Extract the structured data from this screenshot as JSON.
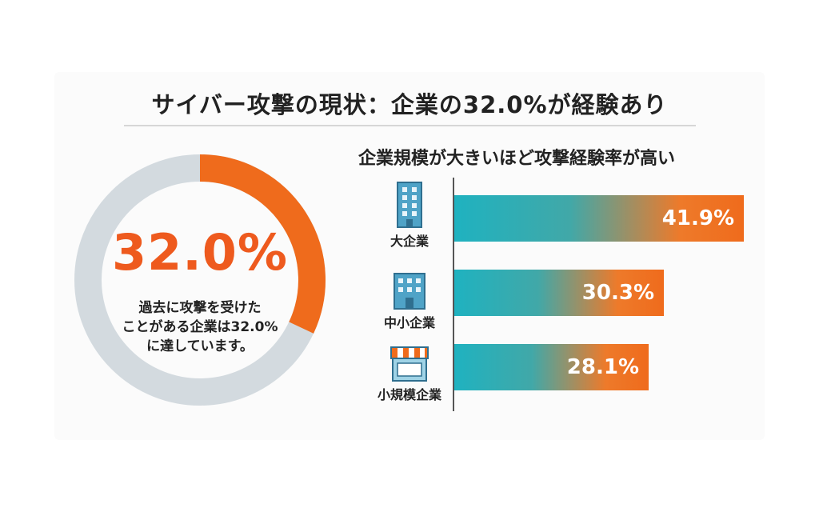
{
  "title": "サイバー攻撃の現状：企業の32.0%が経験あり",
  "donut": {
    "value_label": "32.0%",
    "description_lines": [
      "過去に攻撃を受けた",
      "ことがある企業は32.0%",
      "に達しています。"
    ],
    "colors": {
      "filled": "#ef6b1c",
      "remainder": "#d3dadf"
    }
  },
  "subtitle": "企業規模が大きいほど攻撃経験率が高い",
  "chart_data": [
    {
      "type": "pie",
      "values": [
        32.0,
        68.0
      ],
      "labels": [
        "32.0%",
        ""
      ],
      "title": "",
      "donut": true
    },
    {
      "type": "bar",
      "orientation": "horizontal",
      "title": "企業規模が大きいほど攻撃経験率が高い",
      "categories": [
        "大企業",
        "中小企業",
        "小規模企業"
      ],
      "values": [
        41.9,
        30.3,
        28.1
      ],
      "data_labels": [
        "41.9%",
        "30.3%",
        "28.1%"
      ],
      "icons": [
        "office-building-icon",
        "office-building-icon",
        "storefront-icon"
      ],
      "xlabel": "",
      "ylabel": "",
      "grid": false
    }
  ]
}
